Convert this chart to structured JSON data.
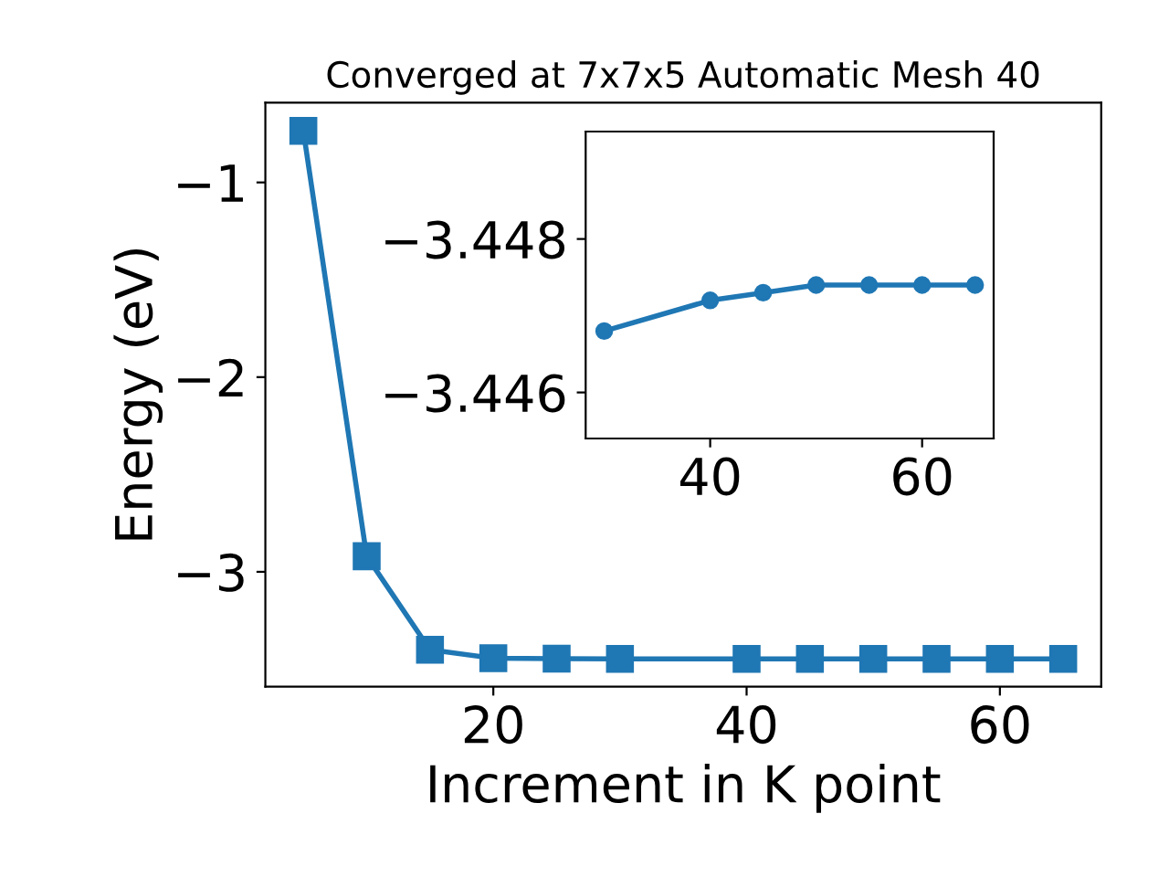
{
  "chart_data": [
    {
      "type": "line",
      "title": "Converged at 7x7x5 Automatic Mesh 40",
      "xlabel": "Increment in K point",
      "ylabel": "Energy (eV)",
      "x": [
        5,
        10,
        15,
        20,
        25,
        30,
        40,
        45,
        50,
        55,
        60,
        65
      ],
      "series": [
        {
          "color": "#1f77b4",
          "values": [
            -0.735,
            -2.92,
            -3.4,
            -3.444,
            -3.446,
            -3.4468,
            -3.4472,
            -3.4473,
            -3.4474,
            -3.4474,
            -3.4474,
            -3.4474
          ]
        }
      ],
      "xlim": [
        2,
        68
      ],
      "ylim": [
        -3.59,
        -0.59
      ],
      "xticks": [
        20,
        40,
        60
      ],
      "yticks": [
        {
          "value": -1,
          "label": "−1"
        },
        {
          "value": -2,
          "label": "−2"
        },
        {
          "value": -3,
          "label": "−3"
        }
      ],
      "marker": "square",
      "line_style": "solid",
      "grid": false,
      "legend": false
    },
    {
      "type": "line",
      "x": [
        30,
        40,
        45,
        50,
        55,
        60,
        65
      ],
      "series": [
        {
          "color": "#1f77b4",
          "values": [
            -3.4468,
            -3.4472,
            -3.4473,
            -3.4474,
            -3.4474,
            -3.4474,
            -3.4474
          ]
        }
      ],
      "xlim": [
        28.25,
        66.75
      ],
      "ylim": [
        -3.4454,
        -3.4494
      ],
      "xticks": [
        40,
        60
      ],
      "yticks": [
        {
          "value": -3.448,
          "label": "−3.448"
        },
        {
          "value": -3.446,
          "label": "−3.446"
        }
      ],
      "marker": "circle",
      "line_style": "solid",
      "grid": false,
      "legend": false
    }
  ]
}
